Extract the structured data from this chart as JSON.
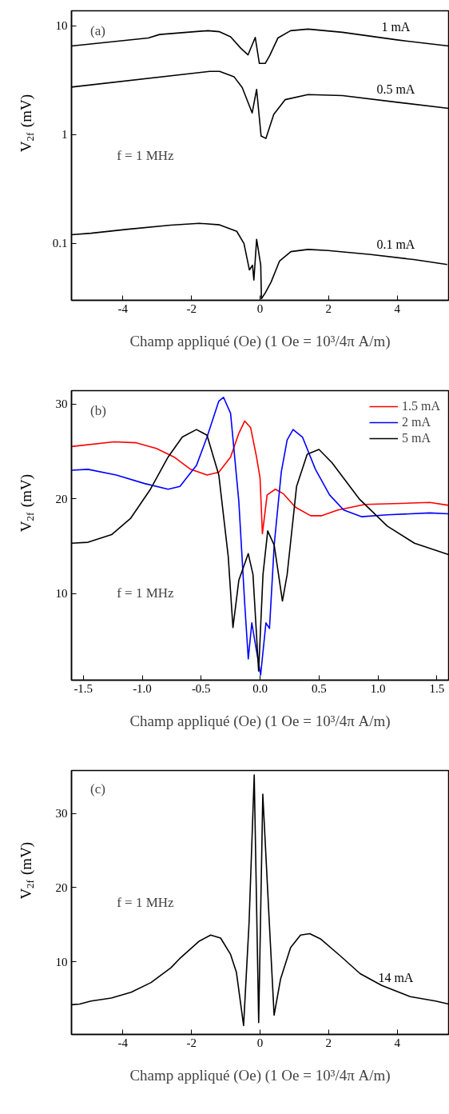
{
  "chart_data": [
    {
      "type": "line",
      "xlabel": "Champ appliqué (Oe) (1 Oe = 10³/4π A/m)",
      "ylabel": "V$_{2f}$ (mV)",
      "log": true,
      "grid": false,
      "legend": false,
      "xlim": [
        -5.5,
        5.5
      ],
      "ylim": [
        0.03,
        13.7
      ],
      "xticks": [
        -4,
        -2,
        0,
        2,
        4
      ],
      "yticks": [
        0.1,
        1,
        10
      ],
      "annotations": [
        "(a)",
        "f = 1 MHz"
      ],
      "series": [
        {
          "name": "1 mA",
          "color": "#000000",
          "x": [
            -5.5,
            -3.26,
            -2.93,
            -1.52,
            -1.18,
            -0.86,
            -0.56,
            -0.35,
            -0.14,
            -0.02,
            0.15,
            0.28,
            0.52,
            0.89,
            1.4,
            2.4,
            4.0,
            5.5
          ],
          "values": [
            6.5,
            7.7,
            8.3,
            9.0,
            8.8,
            7.9,
            6.2,
            5.4,
            7.8,
            4.5,
            4.5,
            5.3,
            7.7,
            9.0,
            9.3,
            8.7,
            7.4,
            6.5
          ]
        },
        {
          "name": "0.5 mA",
          "color": "#000000",
          "x": [
            -5.5,
            -1.47,
            -1.18,
            -0.76,
            -0.52,
            -0.23,
            -0.1,
            0.03,
            0.17,
            0.4,
            0.73,
            1.4,
            2.4,
            4.0,
            5.5
          ],
          "values": [
            2.73,
            3.8,
            3.8,
            3.4,
            2.7,
            1.58,
            2.6,
            0.97,
            0.92,
            1.53,
            2.09,
            2.33,
            2.28,
            1.98,
            1.74
          ]
        },
        {
          "name": "0.1 mA",
          "color": "#000000",
          "x": [
            -5.5,
            -4.93,
            -3.85,
            -2.6,
            -1.77,
            -1.18,
            -0.68,
            -0.47,
            -0.31,
            -0.22,
            -0.18,
            -0.1,
            0.02,
            0.04,
            0.15,
            0.32,
            0.57,
            0.9,
            1.4,
            1.98,
            3.23,
            4.48,
            5.46
          ],
          "values": [
            0.12,
            0.124,
            0.135,
            0.147,
            0.153,
            0.148,
            0.129,
            0.1,
            0.057,
            0.063,
            0.046,
            0.109,
            0.063,
            0.031,
            0.035,
            0.044,
            0.069,
            0.084,
            0.088,
            0.086,
            0.079,
            0.071,
            0.064
          ]
        }
      ]
    },
    {
      "type": "line",
      "xlabel": "Champ appliqué (Oe) (1 Oe = 10³/4π A/m)",
      "ylabel": "V$_{2f}$ (mV)",
      "grid": false,
      "legend": "top right",
      "xlim": [
        -1.6,
        1.6
      ],
      "ylim": [
        0.85,
        31.4
      ],
      "xticks": [
        -1.5,
        {
          "value": -1,
          "label": "-1.0"
        },
        -0.5,
        {
          "value": 0,
          "label": "0.0"
        },
        0.5,
        {
          "value": 1,
          "label": "1.0"
        },
        1.5
      ],
      "yticks": [
        10,
        20,
        30
      ],
      "annotations": [
        "(b)",
        "f = 1 MHz"
      ],
      "series": [
        {
          "name": "1.5 mA",
          "color": "#ff0000",
          "x": [
            -1.6,
            -1.24,
            -1.05,
            -0.88,
            -0.73,
            -0.59,
            -0.45,
            -0.35,
            -0.25,
            -0.18,
            -0.13,
            -0.08,
            -0.03,
            0.0,
            0.02,
            0.06,
            0.13,
            0.2,
            0.3,
            0.43,
            0.52,
            0.66,
            0.89,
            1.19,
            1.44,
            1.6
          ],
          "values": [
            25.5,
            26.0,
            25.9,
            25.3,
            24.4,
            23.1,
            22.5,
            22.8,
            24.4,
            26.9,
            28.2,
            27.5,
            24.4,
            22.2,
            16.3,
            20.4,
            21.0,
            20.5,
            19.1,
            18.2,
            18.2,
            18.8,
            19.4,
            19.5,
            19.6,
            19.3
          ]
        },
        {
          "name": "2 mA",
          "color": "#0000ff",
          "x": [
            -1.6,
            -1.46,
            -1.22,
            -0.98,
            -0.78,
            -0.68,
            -0.54,
            -0.45,
            -0.35,
            -0.31,
            -0.25,
            -0.18,
            -0.13,
            -0.1,
            -0.07,
            -0.035,
            0.005,
            0.05,
            0.08,
            0.12,
            0.18,
            0.23,
            0.28,
            0.36,
            0.47,
            0.59,
            0.71,
            0.86,
            1.08,
            1.44,
            1.6
          ],
          "values": [
            23.0,
            23.1,
            22.5,
            21.6,
            21.0,
            21.3,
            23.5,
            26.5,
            30.3,
            30.7,
            29.0,
            19.7,
            8.9,
            3.1,
            6.9,
            4.3,
            1.4,
            6.9,
            6.3,
            15.1,
            22.8,
            26.2,
            27.3,
            26.5,
            23.1,
            20.4,
            18.8,
            18.1,
            18.3,
            18.5,
            18.4
          ]
        },
        {
          "name": "5 mA",
          "color": "#000000",
          "x": [
            -1.6,
            -1.46,
            -1.26,
            -1.1,
            -0.93,
            -0.78,
            -0.66,
            -0.54,
            -0.45,
            -0.35,
            -0.27,
            -0.23,
            -0.18,
            -0.1,
            -0.06,
            -0.012,
            0.025,
            0.065,
            0.12,
            0.19,
            0.23,
            0.31,
            0.4,
            0.5,
            0.61,
            0.84,
            1.08,
            1.31,
            1.6
          ],
          "values": [
            15.3,
            15.4,
            16.2,
            17.9,
            21.0,
            24.4,
            26.5,
            27.3,
            26.7,
            22.5,
            13.9,
            6.4,
            11.4,
            14.2,
            12.0,
            1.8,
            12.0,
            16.6,
            15.1,
            9.2,
            12.0,
            21.3,
            24.7,
            25.2,
            23.8,
            20.0,
            17.1,
            15.3,
            14.1
          ]
        }
      ]
    },
    {
      "type": "line",
      "xlabel": "Champ appliqué (Oe) (1 Oe = 10³/4π A/m)",
      "ylabel": "V$_{2f}$ (mV)",
      "grid": false,
      "legend": false,
      "xlim": [
        -5.5,
        5.5
      ],
      "ylim": [
        0.2,
        35.8
      ],
      "xticks": [
        -4,
        -2,
        0,
        2,
        4
      ],
      "yticks": [
        10,
        20,
        30
      ],
      "annotations": [
        "(c)",
        "f = 1 MHz"
      ],
      "series": [
        {
          "name": "14 mA",
          "color": "#000000",
          "x": [
            -5.5,
            -5.26,
            -4.93,
            -4.34,
            -3.76,
            -3.18,
            -2.6,
            -2.35,
            -1.77,
            -1.44,
            -1.15,
            -0.86,
            -0.69,
            -0.48,
            -0.32,
            -0.17,
            -0.04,
            0.08,
            0.27,
            0.41,
            0.6,
            0.89,
            1.18,
            1.45,
            1.76,
            2.34,
            2.92,
            3.55,
            4.38,
            5.12,
            5.5
          ],
          "values": [
            4.2,
            4.3,
            4.7,
            5.1,
            5.9,
            7.2,
            9.2,
            10.4,
            12.8,
            13.6,
            13.2,
            11.0,
            8.6,
            1.4,
            15.3,
            35.2,
            1.8,
            32.6,
            15.3,
            2.8,
            7.7,
            11.9,
            13.6,
            13.8,
            13.1,
            10.8,
            8.4,
            6.8,
            5.3,
            4.7,
            4.3
          ]
        }
      ]
    }
  ]
}
